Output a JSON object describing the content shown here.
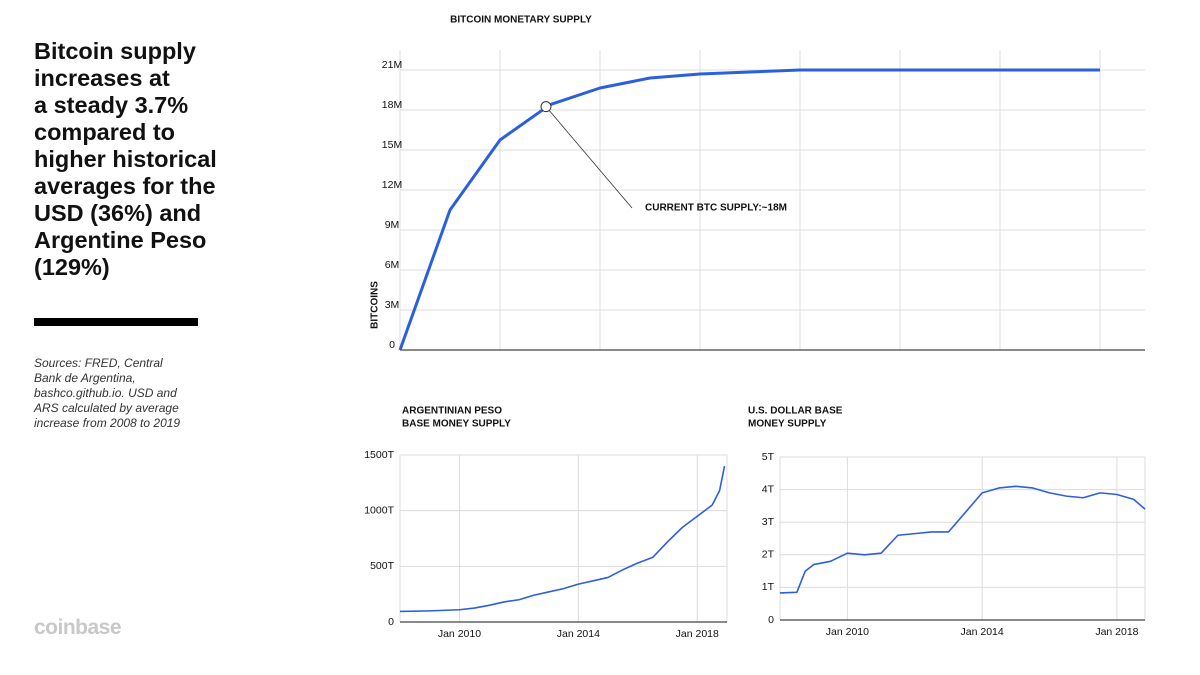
{
  "headline": [
    "Bitcoin supply",
    "increases at",
    "a steady 3.7%",
    "compared to",
    "higher historical",
    "averages for the",
    "USD (36%) and",
    "Argentine Peso",
    "(129%)"
  ],
  "sources": [
    "Sources: FRED, Central",
    "Bank de Argentina,",
    "bashco.github.io. USD and",
    "ARS calculated by average",
    "increase from 2008 to 2019"
  ],
  "brand": "coinbase",
  "chart_data": [
    {
      "type": "line",
      "title": [
        "BITCOIN MONETARY SUPPLY"
      ],
      "y_label": "BITCOINS",
      "annotation": "CURRENT BTC SUPPLY:~18M",
      "categories": [
        null,
        null,
        null,
        null,
        null,
        null,
        null,
        null,
        null,
        null,
        null,
        null,
        null,
        null,
        null
      ],
      "series": [
        {
          "name": "Bitcoin supply",
          "color": "#2b5fde",
          "values": [
            0,
            10.5,
            15.75,
            18.4,
            19.65,
            20.4,
            20.7,
            20.85,
            21,
            21,
            21,
            21,
            21,
            21,
            21
          ]
        }
      ],
      "ylim": [
        0,
        21
      ],
      "yticks": [
        0,
        {
          "value": 3,
          "label": "3M"
        },
        {
          "value": 6,
          "label": "6M"
        },
        {
          "value": 9,
          "label": "9M"
        },
        {
          "value": 12,
          "label": "12M"
        },
        {
          "value": 15,
          "label": "15M"
        },
        {
          "value": 18,
          "label": "18M"
        },
        {
          "value": 21,
          "label": "21M"
        }
      ],
      "grid": true
    },
    {
      "type": "line",
      "title": [
        "ARGENTINIAN PESO",
        "BASE MONEY SUPPLY"
      ],
      "x": [
        "2008-01",
        "2009-01",
        "2010-01",
        "2010-07",
        "2011-01",
        "2011-07",
        "2012-01",
        "2012-07",
        "2013-01",
        "2013-07",
        "2014-01",
        "2014-07",
        "2015-01",
        "2015-07",
        "2016-01",
        "2016-07",
        "2017-01",
        "2017-07",
        "2018-01",
        "2018-07",
        "2018-10",
        "2018-12"
      ],
      "series": [
        {
          "name": "ARS base money",
          "color": "#2b5fde",
          "values": [
            95,
            100,
            110,
            125,
            150,
            180,
            200,
            240,
            270,
            300,
            340,
            370,
            400,
            470,
            530,
            580,
            720,
            850,
            950,
            1050,
            1180,
            1400
          ]
        }
      ],
      "xlim": [
        "2008-01",
        "2019-01"
      ],
      "xticks": [
        {
          "value": "2010-01",
          "label": "Jan 2010"
        },
        {
          "value": "2014-01",
          "label": "Jan 2014"
        },
        {
          "value": "2018-01",
          "label": "Jan 2018"
        }
      ],
      "ylim": [
        0,
        1500
      ],
      "yticks": [
        0,
        {
          "value": 500,
          "label": "500T"
        },
        {
          "value": 1000,
          "label": "1000T"
        },
        {
          "value": 1500,
          "label": "1500T"
        }
      ],
      "grid": true
    },
    {
      "type": "line",
      "title": [
        "U.S. DOLLAR BASE",
        "MONEY SUPPLY"
      ],
      "x": [
        "2008-01",
        "2008-07",
        "2008-10",
        "2009-01",
        "2009-07",
        "2010-01",
        "2010-07",
        "2011-01",
        "2011-07",
        "2012-01",
        "2012-07",
        "2013-01",
        "2013-07",
        "2014-01",
        "2014-07",
        "2015-01",
        "2015-07",
        "2016-01",
        "2016-07",
        "2017-01",
        "2017-07",
        "2018-01",
        "2018-07",
        "2018-11"
      ],
      "series": [
        {
          "name": "USD base money",
          "color": "#2b5fde",
          "values": [
            0.83,
            0.85,
            1.5,
            1.7,
            1.8,
            2.05,
            2.0,
            2.05,
            2.6,
            2.65,
            2.7,
            2.7,
            3.3,
            3.9,
            4.05,
            4.1,
            4.05,
            3.9,
            3.8,
            3.75,
            3.9,
            3.85,
            3.7,
            3.4
          ]
        }
      ],
      "xlim": [
        "2008-01",
        "2018-11"
      ],
      "xticks": [
        {
          "value": "2010-01",
          "label": "Jan 2010"
        },
        {
          "value": "2014-01",
          "label": "Jan 2014"
        },
        {
          "value": "2018-01",
          "label": "Jan 2018"
        }
      ],
      "ylim": [
        0,
        5
      ],
      "yticks": [
        0,
        {
          "value": 1,
          "label": "1T"
        },
        {
          "value": 2,
          "label": "2T"
        },
        {
          "value": 3,
          "label": "3T"
        },
        {
          "value": 4,
          "label": "4T"
        },
        {
          "value": 5,
          "label": "5T"
        }
      ],
      "grid": true
    }
  ]
}
